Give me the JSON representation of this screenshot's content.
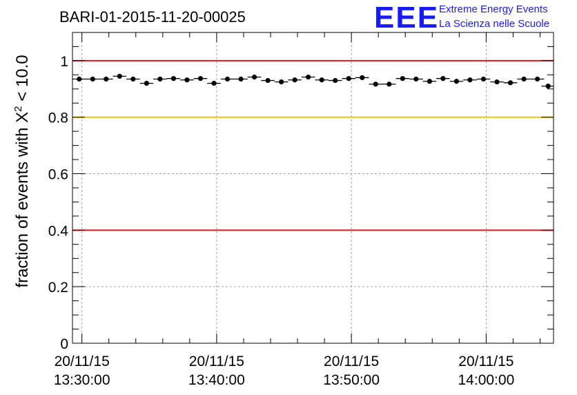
{
  "title": "BARI-01-2015-11-20-00025",
  "logo": {
    "mark": "EEE",
    "line1": "Extreme Energy Events",
    "line2": "La Scienza nelle Scuole"
  },
  "colors": {
    "logo": "#1a1aff",
    "red_line": "#e8141b",
    "yellow_line": "#f7c600",
    "grid": "#a0a0a0",
    "marker": "#000000"
  },
  "chart_data": {
    "type": "scatter",
    "title": "BARI-01-2015-11-20-00025",
    "xlabel": "",
    "ylabel_parts": {
      "pre": "fraction of events with ",
      "symbol": "X",
      "sup": "2",
      "post": " < 10.0"
    },
    "x_unit": "minutes after 13:30:00",
    "xlim": [
      -0.7,
      35
    ],
    "ylim": [
      0,
      1.1
    ],
    "y_ticks": [
      "0",
      "0.2",
      "0.4",
      "0.6",
      "0.8",
      "1"
    ],
    "y_tick_values": [
      0,
      0.2,
      0.4,
      0.6,
      0.8,
      1.0
    ],
    "x_ticks": [
      {
        "value": 0,
        "date": "20/11/15",
        "time": "13:30:00"
      },
      {
        "value": 10,
        "date": "20/11/15",
        "time": "13:40:00"
      },
      {
        "value": 20,
        "date": "20/11/15",
        "time": "13:50:00"
      },
      {
        "value": 30,
        "date": "20/11/15",
        "time": "14:00:00"
      }
    ],
    "bin_width": 1,
    "reference_lines": [
      {
        "y": 1.0,
        "color": "#e8141b"
      },
      {
        "y": 0.8,
        "color": "#f7c600"
      },
      {
        "y": 0.4,
        "color": "#e8141b"
      }
    ],
    "x": [
      -0.2,
      0.8,
      1.8,
      2.8,
      3.8,
      4.8,
      5.8,
      6.8,
      7.8,
      8.8,
      9.8,
      10.8,
      11.8,
      12.8,
      13.8,
      14.8,
      15.8,
      16.8,
      17.8,
      18.8,
      19.8,
      20.8,
      21.8,
      22.8,
      23.8,
      24.8,
      25.8,
      26.8,
      27.8,
      28.8,
      29.8,
      30.8,
      31.8,
      32.8,
      33.8,
      34.6
    ],
    "y": [
      0.935,
      0.935,
      0.935,
      0.945,
      0.935,
      0.92,
      0.935,
      0.937,
      0.932,
      0.937,
      0.92,
      0.935,
      0.935,
      0.942,
      0.93,
      0.925,
      0.932,
      0.942,
      0.932,
      0.93,
      0.937,
      0.94,
      0.917,
      0.917,
      0.937,
      0.935,
      0.927,
      0.937,
      0.927,
      0.932,
      0.935,
      0.925,
      0.922,
      0.935,
      0.935,
      0.91
    ]
  }
}
